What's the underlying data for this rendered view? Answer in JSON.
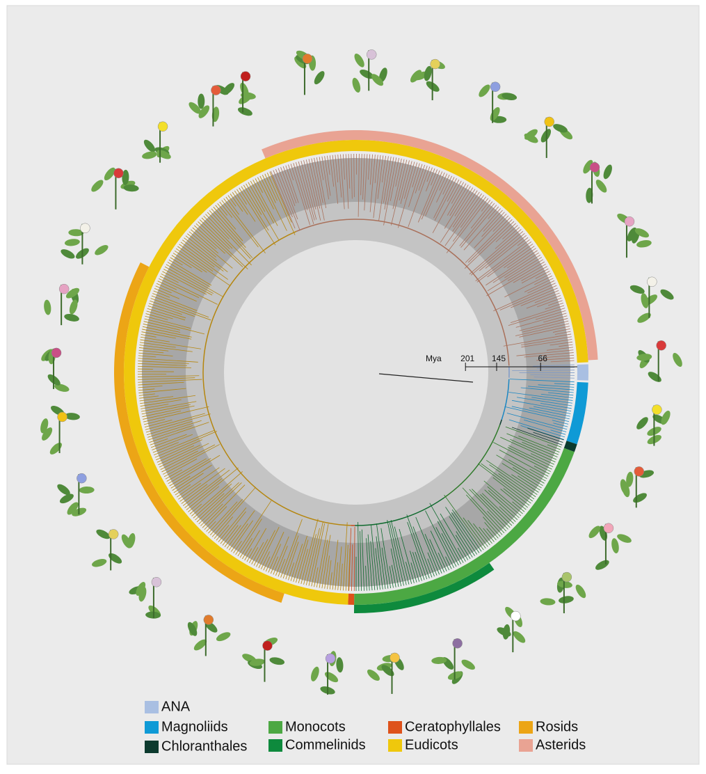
{
  "time_scale": {
    "unit": "Mya",
    "ticks": [
      201,
      145,
      66
    ]
  },
  "legend": [
    {
      "label": "ANA",
      "color": "#a9bfe2"
    },
    {
      "label": "Magnoliids",
      "color": "#0f9ad6"
    },
    {
      "label": "Chloranthales",
      "color": "#0c3a2e"
    },
    {
      "label": "Monocots",
      "color": "#4ca843"
    },
    {
      "label": "Commelinids",
      "color": "#0e8a3d"
    },
    {
      "label": "Ceratophyllales",
      "color": "#de521b"
    },
    {
      "label": "Eudicots",
      "color": "#efc80c"
    },
    {
      "label": "Rosids",
      "color": "#eca516"
    },
    {
      "label": "Asterids",
      "color": "#e9a393"
    }
  ]
}
